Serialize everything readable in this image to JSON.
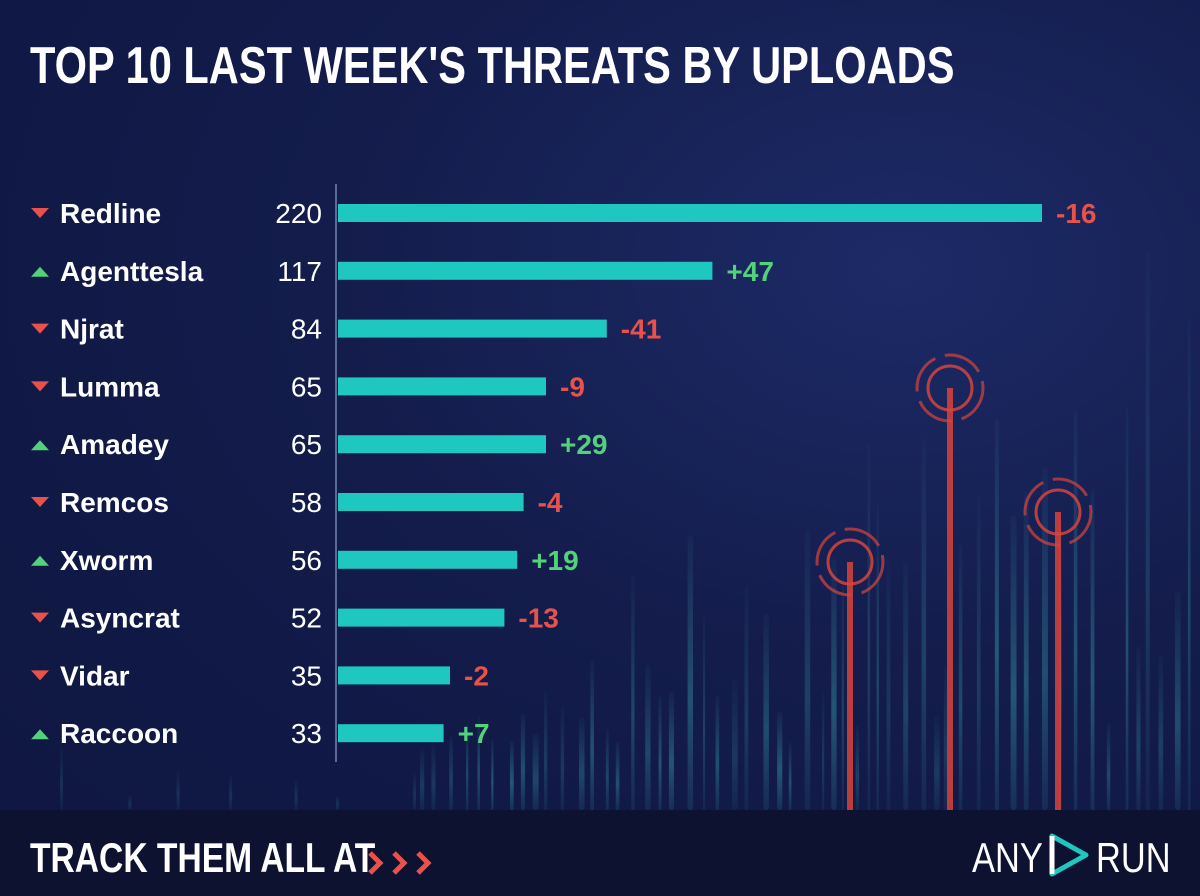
{
  "title": "TOP 10 LAST WEEK'S THREATS BY UPLOADS",
  "footer": {
    "cta": "TRACK THEM ALL AT",
    "arrows_icon": "triple-chevron-right-icon",
    "logo_left": "ANY",
    "logo_icon": "play-triangle-icon",
    "logo_right": "RUN"
  },
  "colors": {
    "bar": "#1ec7bf",
    "up": "#52d27a",
    "down": "#e8524a",
    "text": "#ffffff"
  },
  "chart_data": {
    "type": "bar",
    "orientation": "horizontal",
    "categories": [
      "Redline",
      "Agenttesla",
      "Njrat",
      "Lumma",
      "Amadey",
      "Remcos",
      "Xworm",
      "Asyncrat",
      "Vidar",
      "Raccoon"
    ],
    "values": [
      220,
      117,
      84,
      65,
      65,
      58,
      56,
      52,
      35,
      33
    ],
    "changes": [
      "-16",
      "+47",
      "-41",
      "-9",
      "+29",
      "-4",
      "+19",
      "-13",
      "-2",
      "+7"
    ],
    "trend": [
      "down",
      "up",
      "down",
      "down",
      "up",
      "down",
      "up",
      "down",
      "down",
      "up"
    ],
    "xlim": [
      0,
      220
    ],
    "grid": false,
    "title": "TOP 10 LAST WEEK'S THREATS BY UPLOADS",
    "xlabel": "",
    "ylabel": ""
  }
}
